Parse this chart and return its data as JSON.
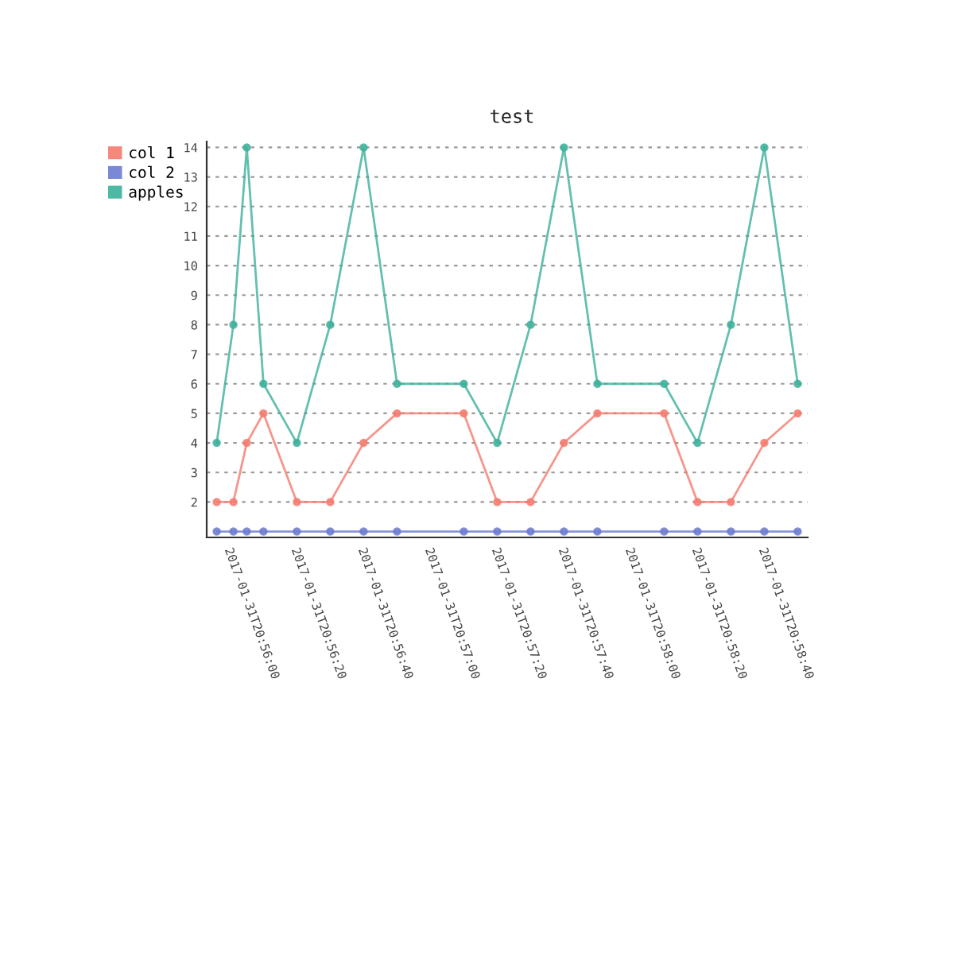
{
  "chart_data": {
    "type": "line",
    "title": "test",
    "x": [
      "2017-01-31T20:55:55",
      "2017-01-31T20:56:00",
      "2017-01-31T20:56:04",
      "2017-01-31T20:56:09",
      "2017-01-31T20:56:19",
      "2017-01-31T20:56:29",
      "2017-01-31T20:56:39",
      "2017-01-31T20:56:49",
      "2017-01-31T20:57:09",
      "2017-01-31T20:57:19",
      "2017-01-31T20:57:29",
      "2017-01-31T20:57:39",
      "2017-01-31T20:57:49",
      "2017-01-31T20:58:09",
      "2017-01-31T20:58:19",
      "2017-01-31T20:58:29",
      "2017-01-31T20:58:39",
      "2017-01-31T20:58:49"
    ],
    "series": [
      {
        "name": "col 1",
        "color": "#f47a6e",
        "values": [
          2,
          2,
          4,
          5,
          2,
          2,
          4,
          5,
          5,
          2,
          2,
          4,
          5,
          5,
          2,
          2,
          4,
          5
        ]
      },
      {
        "name": "col 2",
        "color": "#6b7bd0",
        "values": [
          1,
          1,
          1,
          1,
          1,
          1,
          1,
          1,
          1,
          1,
          1,
          1,
          1,
          1,
          1,
          1,
          1,
          1
        ]
      },
      {
        "name": "apples",
        "color": "#3cb09a",
        "values": [
          4,
          8,
          14,
          6,
          4,
          8,
          14,
          6,
          6,
          4,
          8,
          14,
          6,
          6,
          4,
          8,
          14,
          6
        ]
      }
    ],
    "xlim": [
      "2017-01-31T20:55:52",
      "2017-01-31T20:58:52"
    ],
    "xticks": [
      {
        "value": "2017-01-31T20:56:00",
        "label": "2017-01-31T20:56:00"
      },
      {
        "value": "2017-01-31T20:56:20",
        "label": "2017-01-31T20:56:20"
      },
      {
        "value": "2017-01-31T20:56:40",
        "label": "2017-01-31T20:56:40"
      },
      {
        "value": "2017-01-31T20:57:00",
        "label": "2017-01-31T20:57:00"
      },
      {
        "value": "2017-01-31T20:57:20",
        "label": "2017-01-31T20:57:20"
      },
      {
        "value": "2017-01-31T20:57:40",
        "label": "2017-01-31T20:57:40"
      },
      {
        "value": "2017-01-31T20:58:00",
        "label": "2017-01-31T20:58:00"
      },
      {
        "value": "2017-01-31T20:58:20",
        "label": "2017-01-31T20:58:20"
      },
      {
        "value": "2017-01-31T20:58:40",
        "label": "2017-01-31T20:58:40"
      }
    ],
    "ylim": [
      0.8,
      14.2
    ],
    "yticks": [
      2,
      3,
      4,
      5,
      6,
      7,
      8,
      9,
      10,
      11,
      12,
      13,
      14
    ],
    "grid": "y",
    "legend": "top left",
    "marker": "circle",
    "line_style": "solid"
  }
}
